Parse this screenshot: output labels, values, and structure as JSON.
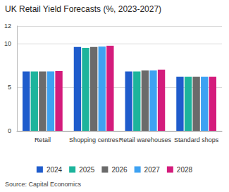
{
  "chart_data": {
    "type": "bar",
    "title": "UK Retail Yield Forecasts (%, 2023-2027)",
    "source": "Source: Capital Economics",
    "categories": [
      "Retail",
      "Shopping centres",
      "Retail warehouses",
      "Standard shops"
    ],
    "series": [
      {
        "name": "2024",
        "color": "#1f5ccc",
        "values": [
          6.8,
          9.6,
          6.8,
          6.2
        ]
      },
      {
        "name": "2025",
        "color": "#1db49c",
        "values": [
          6.8,
          9.5,
          6.8,
          6.2
        ]
      },
      {
        "name": "2026",
        "color": "#6b6b6b",
        "values": [
          6.8,
          9.6,
          6.9,
          6.2
        ]
      },
      {
        "name": "2027",
        "color": "#3ea2f2",
        "values": [
          6.8,
          9.65,
          6.9,
          6.2
        ]
      },
      {
        "name": "2028",
        "color": "#d41c7c",
        "values": [
          6.85,
          9.75,
          7.0,
          6.2
        ]
      }
    ],
    "ylim": [
      0,
      12
    ],
    "yticks": [
      0,
      5,
      10,
      12
    ],
    "grid": true,
    "legend": "bottom"
  }
}
